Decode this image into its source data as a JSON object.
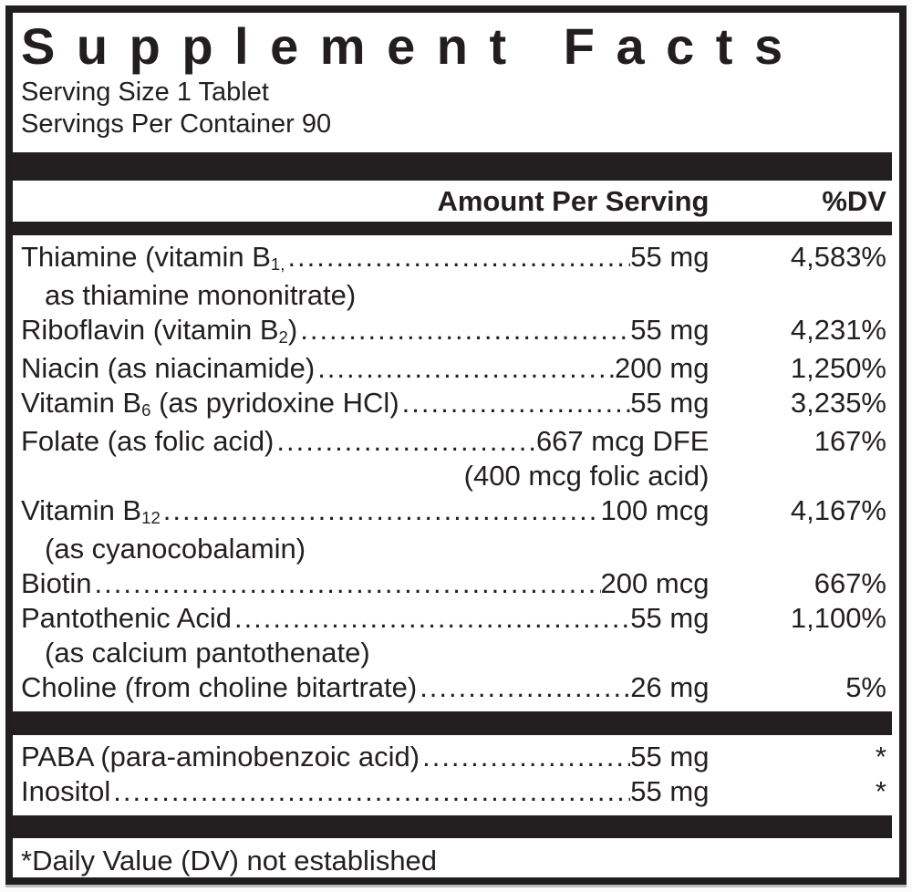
{
  "label": {
    "title": "Supplement Facts",
    "serving_size": "Serving Size 1 Tablet",
    "servings_per_container": "Servings Per Container 90",
    "columns": {
      "amount": "Amount Per Serving",
      "dv": "%DV"
    },
    "rows": [
      {
        "name": "Thiamine (vitamin B",
        "sub": "1,",
        "amount": "55 mg",
        "dv": "4,583%",
        "note": "as thiamine mononitrate)"
      },
      {
        "name": "Riboflavin (vitamin B",
        "sub": "2",
        "suffix": ")",
        "amount": "55 mg",
        "dv": "4,231%"
      },
      {
        "name": "Niacin (as niacinamide)",
        "amount": "200 mg",
        "dv": "1,250%"
      },
      {
        "name": "Vitamin B",
        "sub": "6",
        "suffix": " (as pyridoxine HCl)",
        "amount": "55 mg",
        "dv": "3,235%"
      },
      {
        "name": "Folate (as folic acid)",
        "amount": "667 mcg DFE",
        "dv": "167%",
        "note": "(400 mcg folic acid)"
      },
      {
        "name": "Vitamin B",
        "sub": "12",
        "amount": "100 mcg",
        "dv": "4,167%",
        "note": "(as cyanocobalamin)"
      },
      {
        "name": "Biotin",
        "amount": "200 mcg",
        "dv": "667%"
      },
      {
        "name": "Pantothenic Acid",
        "amount": "55 mg",
        "dv": "1,100%",
        "note": "(as calcium pantothenate)"
      },
      {
        "name": "Choline (from choline bitartrate)",
        "amount": "26 mg",
        "dv": "5%"
      },
      {
        "name": "PABA (para-aminobenzoic acid)",
        "amount": "55 mg",
        "dv": "*"
      },
      {
        "name": "Inositol",
        "amount": "55 mg",
        "dv": "*"
      }
    ],
    "footnote": "*Daily Value (DV) not established",
    "colors": {
      "ink": "#231f20",
      "background": "#ffffff"
    }
  }
}
